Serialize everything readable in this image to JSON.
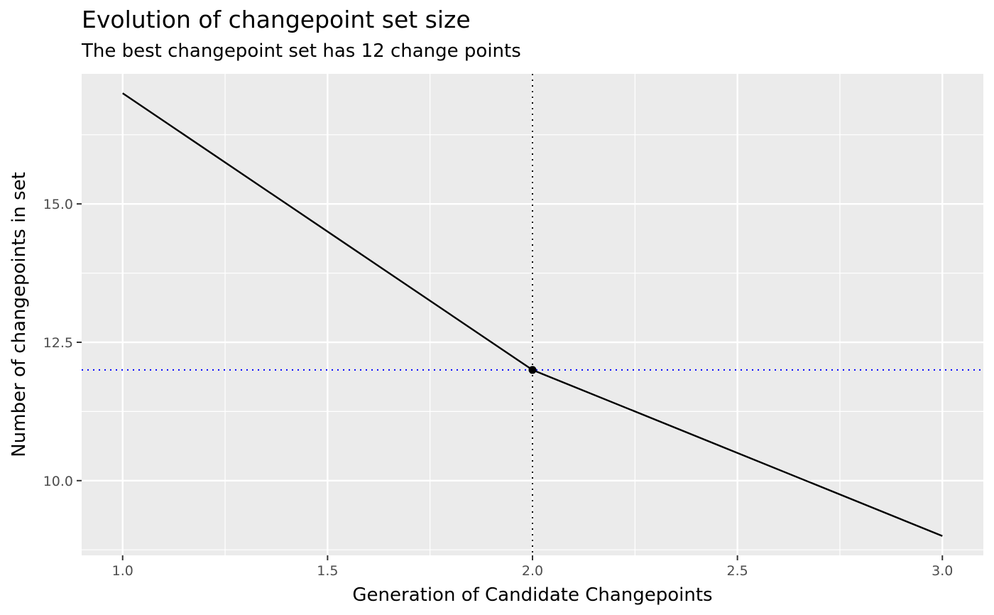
{
  "chart_data": {
    "type": "line",
    "title": "Evolution of changepoint set size",
    "subtitle": "The best changepoint set has 12 change points",
    "xlabel": "Generation of Candidate Changepoints",
    "ylabel": "Number of changepoints in set",
    "x": [
      1,
      2,
      3
    ],
    "y": [
      17,
      12,
      9
    ],
    "xlim": [
      0.9,
      3.1
    ],
    "ylim": [
      8.65,
      17.35
    ],
    "x_ticks": [
      1.0,
      1.5,
      2.0,
      2.5,
      3.0
    ],
    "x_tick_labels": [
      "1.0",
      "1.5",
      "2.0",
      "2.5",
      "3.0"
    ],
    "y_ticks": [
      10.0,
      12.5,
      15.0
    ],
    "y_tick_labels": [
      "10.0",
      "12.5",
      "15.0"
    ],
    "grid": true,
    "highlight_point": {
      "x": 2,
      "y": 12
    },
    "vline": {
      "x": 2,
      "style": "dotted",
      "color": "#000000"
    },
    "hline": {
      "y": 12,
      "style": "dotted",
      "color": "#0000ff"
    },
    "line_color": "#000000",
    "panel_background": "#ebebeb",
    "grid_color": "#ffffff"
  }
}
